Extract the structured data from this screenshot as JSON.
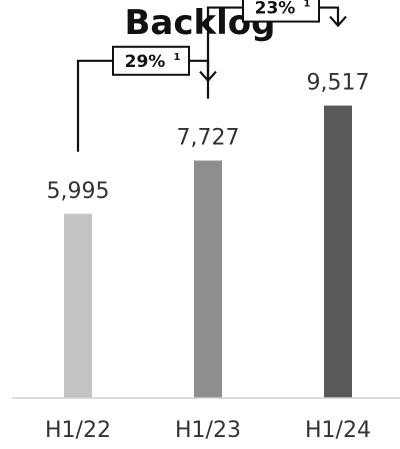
{
  "chart_data": {
    "type": "bar",
    "title": "Backlog",
    "categories": [
      "H1/22",
      "H1/23",
      "H1/24"
    ],
    "values": [
      5995,
      7727,
      9517
    ],
    "value_labels": [
      "5,995",
      "7,727",
      "9,517"
    ],
    "colors": [
      "#c4c4c4",
      "#8e8e8e",
      "#595959"
    ],
    "ylim": [
      0,
      11000
    ],
    "grid": false,
    "legend": "none",
    "annotations": [
      {
        "from": 0,
        "to": 1,
        "label": "29%",
        "footnote": "1"
      },
      {
        "from": 1,
        "to": 2,
        "label": "23%",
        "footnote": "1"
      }
    ]
  }
}
